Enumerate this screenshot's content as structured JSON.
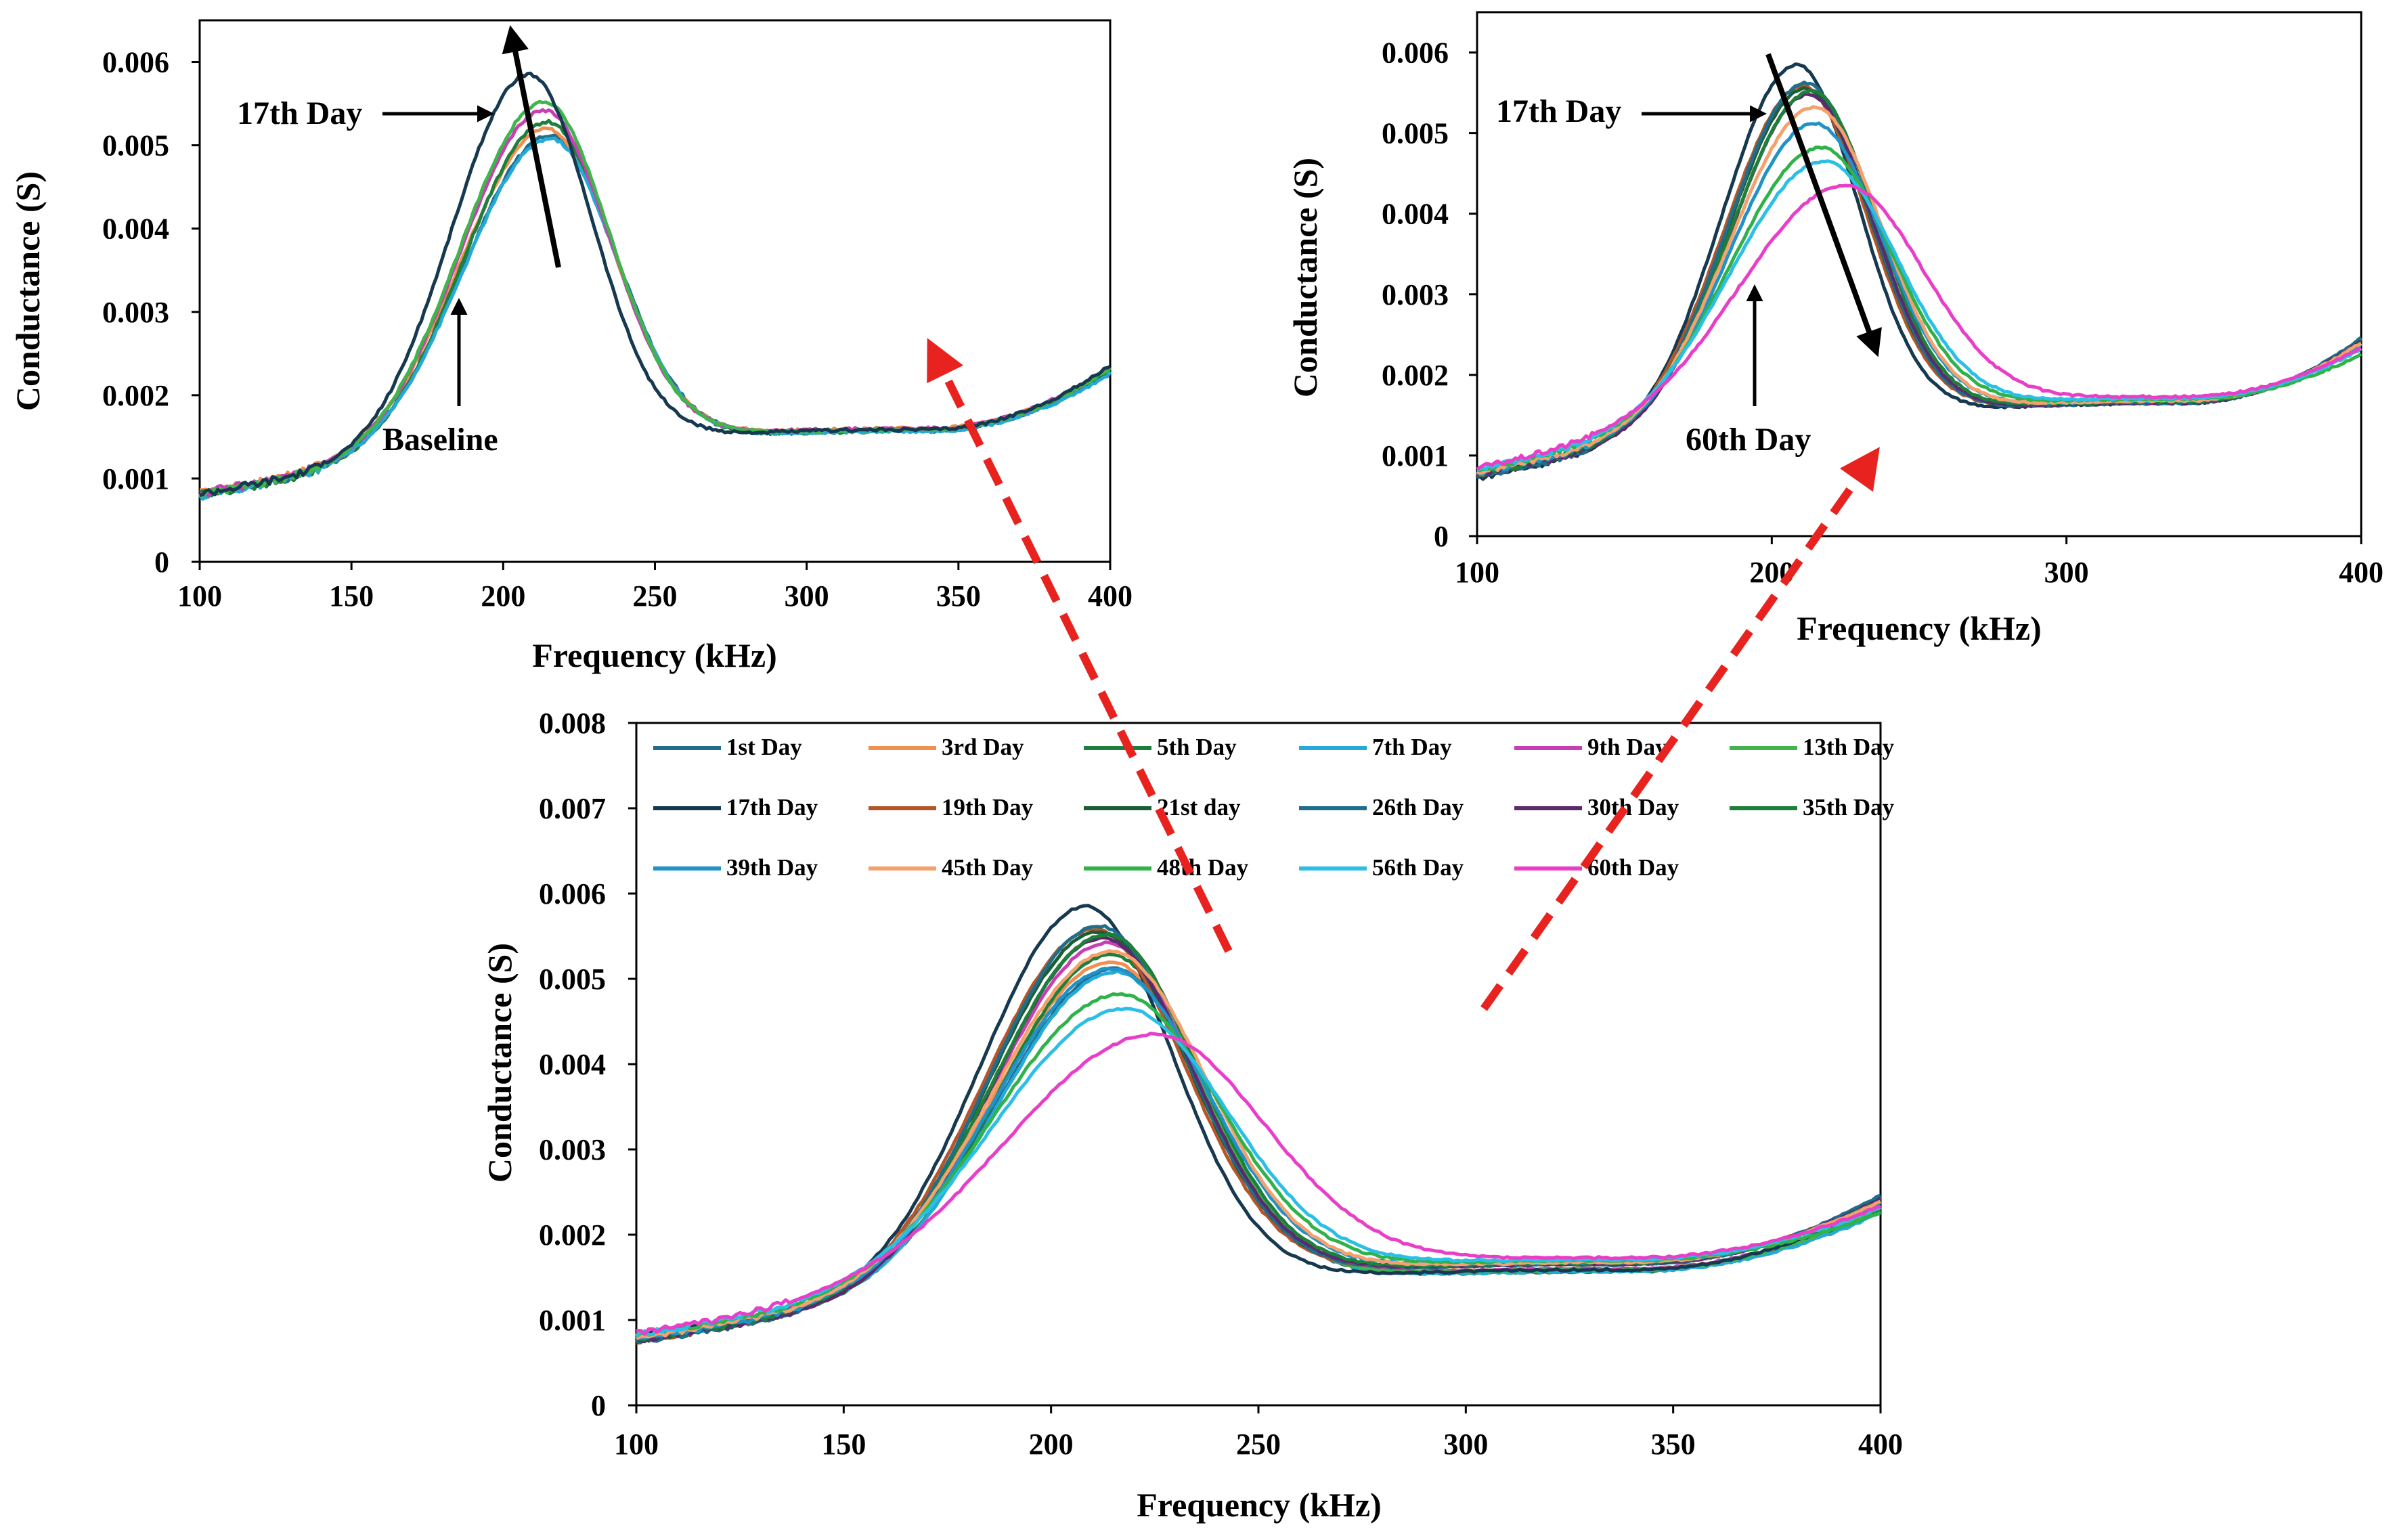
{
  "chart_data": [
    {
      "id": "top-left",
      "type": "line",
      "title": "",
      "xlabel": "Frequency (kHz)",
      "ylabel": "Conductance (S)",
      "xlim": [
        100,
        400
      ],
      "ylim": [
        0,
        0.0065
      ],
      "xticks": [
        "100",
        "150",
        "200",
        "250",
        "300",
        "350",
        "400"
      ],
      "yticks": [
        "0",
        "0.001",
        "0.002",
        "0.003",
        "0.004",
        "0.005",
        "0.006"
      ],
      "grid": false,
      "annotations": [
        {
          "text": "17th Day",
          "role": "peak-label"
        },
        {
          "text": "Baseline",
          "role": "baseline-label"
        }
      ],
      "series": [
        {
          "name": "Baseline",
          "color": "#1f6e8c",
          "peak_x": 215,
          "peak_y": 0.00512,
          "sigma_left": 28,
          "sigma_right": 22,
          "y100": 0.0008,
          "ymin": 0.00158,
          "y400": 0.00228
        },
        {
          "name": "3rd Day",
          "color": "#f28e4f",
          "peak_x": 214,
          "peak_y": 0.0052,
          "sigma_left": 28,
          "sigma_right": 22,
          "y100": 0.00082,
          "ymin": 0.0016,
          "y400": 0.00232
        },
        {
          "name": "5th Day",
          "color": "#1e7f3a",
          "peak_x": 214,
          "peak_y": 0.00528,
          "sigma_left": 27,
          "sigma_right": 22,
          "y100": 0.0008,
          "ymin": 0.00157,
          "y400": 0.0023
        },
        {
          "name": "7th Day",
          "color": "#25a9d6",
          "peak_x": 215,
          "peak_y": 0.00508,
          "sigma_left": 28,
          "sigma_right": 22,
          "y100": 0.00079,
          "ymin": 0.00157,
          "y400": 0.00226
        },
        {
          "name": "9th Day",
          "color": "#c83fb4",
          "peak_x": 213,
          "peak_y": 0.00542,
          "sigma_left": 27,
          "sigma_right": 22,
          "y100": 0.00082,
          "ymin": 0.0016,
          "y400": 0.00234
        },
        {
          "name": "13th Day",
          "color": "#3fb54b",
          "peak_x": 213,
          "peak_y": 0.00552,
          "sigma_left": 27,
          "sigma_right": 22,
          "y100": 0.00081,
          "ymin": 0.00159,
          "y400": 0.00232
        },
        {
          "name": "17th Day",
          "color": "#16394f",
          "peak_x": 208,
          "peak_y": 0.00585,
          "sigma_left": 25,
          "sigma_right": 21,
          "y100": 0.00082,
          "ymin": 0.00159,
          "y400": 0.00236
        }
      ]
    },
    {
      "id": "top-right",
      "type": "line",
      "title": "",
      "xlabel": "Frequency (kHz)",
      "ylabel": "Conductance (S)",
      "xlim": [
        100,
        400
      ],
      "ylim": [
        0,
        0.0065
      ],
      "xticks": [
        "100",
        "200",
        "300",
        "400"
      ],
      "yticks": [
        "0",
        "0.001",
        "0.002",
        "0.003",
        "0.004",
        "0.005",
        "0.006"
      ],
      "grid": false,
      "annotations": [
        {
          "text": "17th Day",
          "role": "peak-label"
        },
        {
          "text": "60th Day",
          "role": "peak-label"
        }
      ],
      "series": [
        {
          "name": "17th Day",
          "color": "#16394f",
          "peak_x": 208,
          "peak_y": 0.00585,
          "sigma_left": 25,
          "sigma_right": 21,
          "y100": 0.00072,
          "ymin": 0.00165,
          "y400": 0.00245
        },
        {
          "name": "19th Day",
          "color": "#b5552a",
          "peak_x": 210,
          "peak_y": 0.00558,
          "sigma_left": 26,
          "sigma_right": 22,
          "y100": 0.00075,
          "ymin": 0.00166,
          "y400": 0.00244
        },
        {
          "name": "21st day",
          "color": "#1b5e33",
          "peak_x": 211,
          "peak_y": 0.00555,
          "sigma_left": 26,
          "sigma_right": 22,
          "y100": 0.00076,
          "ymin": 0.00166,
          "y400": 0.00243
        },
        {
          "name": "26th Day",
          "color": "#1f6e8c",
          "peak_x": 211,
          "peak_y": 0.00562,
          "sigma_left": 26,
          "sigma_right": 22,
          "y100": 0.00074,
          "ymin": 0.00165,
          "y400": 0.00246
        },
        {
          "name": "30th Day",
          "color": "#5b2a6e",
          "peak_x": 212,
          "peak_y": 0.00548,
          "sigma_left": 26,
          "sigma_right": 22,
          "y100": 0.00076,
          "ymin": 0.00166,
          "y400": 0.00242
        },
        {
          "name": "35th Day",
          "color": "#1e7f3a",
          "peak_x": 213,
          "peak_y": 0.00552,
          "sigma_left": 27,
          "sigma_right": 22,
          "y100": 0.00077,
          "ymin": 0.00167,
          "y400": 0.0024
        },
        {
          "name": "39th Day",
          "color": "#1f93c8",
          "peak_x": 214,
          "peak_y": 0.00512,
          "sigma_left": 28,
          "sigma_right": 23,
          "y100": 0.00078,
          "ymin": 0.00168,
          "y400": 0.00238
        },
        {
          "name": "45th Day",
          "color": "#f4a16d",
          "peak_x": 214,
          "peak_y": 0.00532,
          "sigma_left": 28,
          "sigma_right": 23,
          "y100": 0.00079,
          "ymin": 0.00168,
          "y400": 0.0024
        },
        {
          "name": "48th Day",
          "color": "#2fb24a",
          "peak_x": 216,
          "peak_y": 0.00482,
          "sigma_left": 30,
          "sigma_right": 24,
          "y100": 0.00082,
          "ymin": 0.0017,
          "y400": 0.00226
        },
        {
          "name": "56th Day",
          "color": "#2bbfe6",
          "peak_x": 217,
          "peak_y": 0.00465,
          "sigma_left": 31,
          "sigma_right": 25,
          "y100": 0.00083,
          "ymin": 0.00171,
          "y400": 0.00232
        },
        {
          "name": "60th Day",
          "color": "#e83ec8",
          "peak_x": 224,
          "peak_y": 0.00435,
          "sigma_left": 35,
          "sigma_right": 27,
          "y100": 0.00084,
          "ymin": 0.00173,
          "y400": 0.00234
        }
      ]
    },
    {
      "id": "bottom",
      "type": "line",
      "title": "",
      "xlabel": "Frequency (kHz)",
      "ylabel": "Conductance (S)",
      "xlim": [
        100,
        400
      ],
      "ylim": [
        0,
        0.008
      ],
      "xticks": [
        "100",
        "150",
        "200",
        "250",
        "300",
        "350",
        "400"
      ],
      "yticks": [
        "0",
        "0.001",
        "0.002",
        "0.003",
        "0.004",
        "0.005",
        "0.006",
        "0.007",
        "0.008"
      ],
      "grid": false,
      "legend_position": "top",
      "series": [
        {
          "name": "1st Day",
          "color": "#1f6e8c",
          "peak_x": 215,
          "peak_y": 0.00512,
          "sigma_left": 28,
          "sigma_right": 22,
          "y100": 0.0008,
          "ymin": 0.00158,
          "y400": 0.00228
        },
        {
          "name": "3rd Day",
          "color": "#f28e4f",
          "peak_x": 214,
          "peak_y": 0.0052,
          "sigma_left": 28,
          "sigma_right": 22,
          "y100": 0.00082,
          "ymin": 0.0016,
          "y400": 0.00232
        },
        {
          "name": "5th Day",
          "color": "#1e7f3a",
          "peak_x": 214,
          "peak_y": 0.00528,
          "sigma_left": 27,
          "sigma_right": 22,
          "y100": 0.0008,
          "ymin": 0.00157,
          "y400": 0.0023
        },
        {
          "name": "7th Day",
          "color": "#25a9d6",
          "peak_x": 215,
          "peak_y": 0.00508,
          "sigma_left": 28,
          "sigma_right": 22,
          "y100": 0.00079,
          "ymin": 0.00157,
          "y400": 0.00226
        },
        {
          "name": "9th Day",
          "color": "#c83fb4",
          "peak_x": 213,
          "peak_y": 0.00542,
          "sigma_left": 27,
          "sigma_right": 22,
          "y100": 0.00082,
          "ymin": 0.0016,
          "y400": 0.00234
        },
        {
          "name": "13th Day",
          "color": "#3fb54b",
          "peak_x": 213,
          "peak_y": 0.00552,
          "sigma_left": 27,
          "sigma_right": 22,
          "y100": 0.00081,
          "ymin": 0.00159,
          "y400": 0.00232
        },
        {
          "name": "17th Day",
          "color": "#16394f",
          "peak_x": 208,
          "peak_y": 0.00585,
          "sigma_left": 25,
          "sigma_right": 21,
          "y100": 0.00082,
          "ymin": 0.00159,
          "y400": 0.00236
        },
        {
          "name": "19th Day",
          "color": "#b5552a",
          "peak_x": 210,
          "peak_y": 0.00558,
          "sigma_left": 26,
          "sigma_right": 22,
          "y100": 0.00075,
          "ymin": 0.00166,
          "y400": 0.00244
        },
        {
          "name": "21st day",
          "color": "#1b5e33",
          "peak_x": 211,
          "peak_y": 0.00555,
          "sigma_left": 26,
          "sigma_right": 22,
          "y100": 0.00076,
          "ymin": 0.00166,
          "y400": 0.00243
        },
        {
          "name": "26th Day",
          "color": "#1f6e8c",
          "peak_x": 211,
          "peak_y": 0.00562,
          "sigma_left": 26,
          "sigma_right": 22,
          "y100": 0.00074,
          "ymin": 0.00165,
          "y400": 0.00246
        },
        {
          "name": "30th Day",
          "color": "#5b2a6e",
          "peak_x": 212,
          "peak_y": 0.00548,
          "sigma_left": 26,
          "sigma_right": 22,
          "y100": 0.00076,
          "ymin": 0.00166,
          "y400": 0.00242
        },
        {
          "name": "35th Day",
          "color": "#1e7f3a",
          "peak_x": 213,
          "peak_y": 0.00552,
          "sigma_left": 27,
          "sigma_right": 22,
          "y100": 0.00077,
          "ymin": 0.00167,
          "y400": 0.0024
        },
        {
          "name": "39th Day",
          "color": "#1f93c8",
          "peak_x": 214,
          "peak_y": 0.00512,
          "sigma_left": 28,
          "sigma_right": 23,
          "y100": 0.00078,
          "ymin": 0.00168,
          "y400": 0.00238
        },
        {
          "name": "45th Day",
          "color": "#f4a16d",
          "peak_x": 214,
          "peak_y": 0.00532,
          "sigma_left": 28,
          "sigma_right": 23,
          "y100": 0.00079,
          "ymin": 0.00168,
          "y400": 0.0024
        },
        {
          "name": "48th Day",
          "color": "#2fb24a",
          "peak_x": 216,
          "peak_y": 0.00482,
          "sigma_left": 30,
          "sigma_right": 24,
          "y100": 0.00082,
          "ymin": 0.0017,
          "y400": 0.00226
        },
        {
          "name": "56th Day",
          "color": "#2bbfe6",
          "peak_x": 217,
          "peak_y": 0.00465,
          "sigma_left": 31,
          "sigma_right": 25,
          "y100": 0.00083,
          "ymin": 0.00171,
          "y400": 0.00232
        },
        {
          "name": "60th Day",
          "color": "#e83ec8",
          "peak_x": 224,
          "peak_y": 0.00435,
          "sigma_left": 35,
          "sigma_right": 27,
          "y100": 0.00084,
          "ymin": 0.00173,
          "y400": 0.00234
        }
      ]
    }
  ],
  "connector_color": "#e8231f"
}
